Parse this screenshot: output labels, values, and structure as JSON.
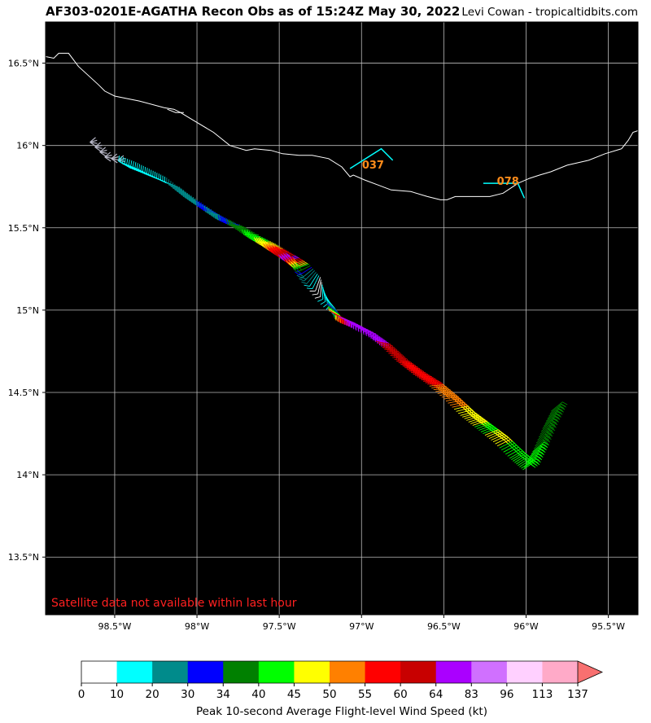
{
  "header": {
    "title": "AF303-0201E-AGATHA Recon Obs as of 15:24Z May 30, 2022",
    "credit": "Levi Cowan - tropicaltidbits.com"
  },
  "map": {
    "lon_range": [
      -98.92,
      -95.32
    ],
    "lat_range": [
      13.15,
      16.75
    ],
    "grid": true,
    "background": "#000000",
    "gridline_color": "#bbbbbb",
    "coast_color": "#ffffff",
    "lon_ticks": [
      {
        "v": -98.5,
        "label": "98.5°W"
      },
      {
        "v": -98.0,
        "label": "98°W"
      },
      {
        "v": -97.5,
        "label": "97.5°W"
      },
      {
        "v": -97.0,
        "label": "97°W"
      },
      {
        "v": -96.5,
        "label": "96.5°W"
      },
      {
        "v": -96.0,
        "label": "96°W"
      },
      {
        "v": -95.5,
        "label": "95.5°W"
      }
    ],
    "lat_ticks": [
      {
        "v": 16.5,
        "label": "16.5°N"
      },
      {
        "v": 16.0,
        "label": "16°N"
      },
      {
        "v": 15.5,
        "label": "15.5°N"
      },
      {
        "v": 15.0,
        "label": "15°N"
      },
      {
        "v": 14.5,
        "label": "14.5°N"
      },
      {
        "v": 14.0,
        "label": "14°N"
      },
      {
        "v": 13.5,
        "label": "13.5°N"
      }
    ],
    "notice": "Satellite data not available within last hour",
    "notice_color": "#ff2020",
    "coastline": [
      [
        -98.92,
        16.54
      ],
      [
        -98.87,
        16.53
      ],
      [
        -98.84,
        16.56
      ],
      [
        -98.78,
        16.56
      ],
      [
        -98.72,
        16.48
      ],
      [
        -98.6,
        16.37
      ],
      [
        -98.56,
        16.33
      ],
      [
        -98.5,
        16.3
      ],
      [
        -98.35,
        16.27
      ],
      [
        -98.2,
        16.23
      ],
      [
        -98.14,
        16.22
      ],
      [
        -98.1,
        16.2
      ],
      [
        -98.05,
        16.17
      ],
      [
        -97.9,
        16.08
      ],
      [
        -97.8,
        16.0
      ],
      [
        -97.7,
        15.97
      ],
      [
        -97.65,
        15.98
      ],
      [
        -97.55,
        15.97
      ],
      [
        -97.48,
        15.95
      ],
      [
        -97.38,
        15.94
      ],
      [
        -97.3,
        15.94
      ],
      [
        -97.2,
        15.92
      ],
      [
        -97.12,
        15.87
      ],
      [
        -97.07,
        15.81
      ],
      [
        -97.05,
        15.82
      ],
      [
        -96.98,
        15.79
      ],
      [
        -96.9,
        15.76
      ],
      [
        -96.82,
        15.73
      ],
      [
        -96.7,
        15.72
      ],
      [
        -96.6,
        15.69
      ],
      [
        -96.52,
        15.67
      ],
      [
        -96.48,
        15.67
      ],
      [
        -96.43,
        15.69
      ],
      [
        -96.37,
        15.69
      ],
      [
        -96.28,
        15.69
      ],
      [
        -96.22,
        15.69
      ],
      [
        -96.14,
        15.71
      ],
      [
        -96.05,
        15.77
      ],
      [
        -95.98,
        15.8
      ],
      [
        -95.92,
        15.82
      ],
      [
        -95.85,
        15.84
      ],
      [
        -95.75,
        15.88
      ],
      [
        -95.62,
        15.91
      ],
      [
        -95.52,
        15.95
      ],
      [
        -95.42,
        15.98
      ],
      [
        -95.38,
        16.03
      ],
      [
        -95.35,
        16.08
      ],
      [
        -95.32,
        16.09
      ]
    ],
    "island": [
      [
        -98.18,
        16.22
      ],
      [
        -98.13,
        16.2
      ],
      [
        -98.08,
        16.2
      ]
    ],
    "gray_obs": [
      [
        -98.65,
        16.02
      ],
      [
        -98.62,
        15.99
      ],
      [
        -98.59,
        15.96
      ],
      [
        -98.56,
        15.93
      ],
      [
        -98.52,
        15.92
      ],
      [
        -98.48,
        15.91
      ]
    ],
    "flight_track": [
      {
        "lon": -98.4,
        "lat": 15.86,
        "kt": 12,
        "dir": 300
      },
      {
        "lon": -98.3,
        "lat": 15.82,
        "kt": 14,
        "dir": 300
      },
      {
        "lon": -98.2,
        "lat": 15.78,
        "kt": 16,
        "dir": 295
      },
      {
        "lon": -98.1,
        "lat": 15.74,
        "kt": 20,
        "dir": 290
      },
      {
        "lon": -98.0,
        "lat": 15.66,
        "kt": 24,
        "dir": 290
      },
      {
        "lon": -97.9,
        "lat": 15.6,
        "kt": 31,
        "dir": 285
      },
      {
        "lon": -97.8,
        "lat": 15.54,
        "kt": 28,
        "dir": 280
      },
      {
        "lon": -97.7,
        "lat": 15.5,
        "kt": 36,
        "dir": 275
      },
      {
        "lon": -97.6,
        "lat": 15.44,
        "kt": 42,
        "dir": 270
      },
      {
        "lon": -97.52,
        "lat": 15.4,
        "kt": 47,
        "dir": 265
      },
      {
        "lon": -97.45,
        "lat": 15.36,
        "kt": 58,
        "dir": 260
      },
      {
        "lon": -97.38,
        "lat": 15.32,
        "kt": 66,
        "dir": 255
      },
      {
        "lon": -97.32,
        "lat": 15.28,
        "kt": 42,
        "dir": 250
      },
      {
        "lon": -97.25,
        "lat": 15.2,
        "kt": 8,
        "dir": 200
      },
      {
        "lon": -97.22,
        "lat": 15.08,
        "kt": 14,
        "dir": 140
      },
      {
        "lon": -97.2,
        "lat": 15.0,
        "kt": 52,
        "dir": 120
      },
      {
        "lon": -97.12,
        "lat": 14.95,
        "kt": 70,
        "dir": 110
      },
      {
        "lon": -97.0,
        "lat": 14.88,
        "kt": 72,
        "dir": 105
      },
      {
        "lon": -96.9,
        "lat": 14.8,
        "kt": 62,
        "dir": 100
      },
      {
        "lon": -96.8,
        "lat": 14.7,
        "kt": 60,
        "dir": 95
      },
      {
        "lon": -96.7,
        "lat": 14.62,
        "kt": 58,
        "dir": 90
      },
      {
        "lon": -96.6,
        "lat": 14.55,
        "kt": 55,
        "dir": 85
      },
      {
        "lon": -96.5,
        "lat": 14.46,
        "kt": 52,
        "dir": 80
      },
      {
        "lon": -96.4,
        "lat": 14.36,
        "kt": 48,
        "dir": 75
      },
      {
        "lon": -96.3,
        "lat": 14.28,
        "kt": 44,
        "dir": 70
      },
      {
        "lon": -96.2,
        "lat": 14.2,
        "kt": 46,
        "dir": 65
      },
      {
        "lon": -96.1,
        "lat": 14.1,
        "kt": 42,
        "dir": 60
      },
      {
        "lon": -96.02,
        "lat": 14.03,
        "kt": 41,
        "dir": 55
      },
      {
        "lon": -95.96,
        "lat": 14.14,
        "kt": 40,
        "dir": 50
      },
      {
        "lon": -95.9,
        "lat": 14.28,
        "kt": 38,
        "dir": 50
      },
      {
        "lon": -95.84,
        "lat": 14.4,
        "kt": 38,
        "dir": 50
      }
    ],
    "stations": [
      {
        "label": "037",
        "lon": -96.93,
        "lat": 15.86,
        "barbs": [
          [
            -97.07,
            15.86,
            -96.88,
            15.98,
            -96.81,
            15.91
          ]
        ]
      },
      {
        "label": "078",
        "lon": -96.11,
        "lat": 15.76,
        "barbs": [
          [
            -96.26,
            15.77,
            -96.05,
            15.77,
            -96.01,
            15.68
          ]
        ]
      }
    ],
    "station_label_color": "#ff8c1a",
    "station_barb_color": "#00ffff"
  },
  "colorbar": {
    "label": "Peak 10-second Average Flight-level Wind Speed (kt)",
    "ticks": [
      "0",
      "10",
      "20",
      "30",
      "34",
      "40",
      "45",
      "50",
      "55",
      "60",
      "64",
      "83",
      "96",
      "113",
      "137"
    ],
    "colors": [
      "#ffffff",
      "#00ffff",
      "#008b8b",
      "#0000ff",
      "#008000",
      "#00ff00",
      "#ffff00",
      "#ff8000",
      "#ff0000",
      "#c80000",
      "#aa00ff",
      "#d070ff",
      "#ffd0ff",
      "#ffaac8"
    ],
    "extend_color": "#f87070"
  }
}
